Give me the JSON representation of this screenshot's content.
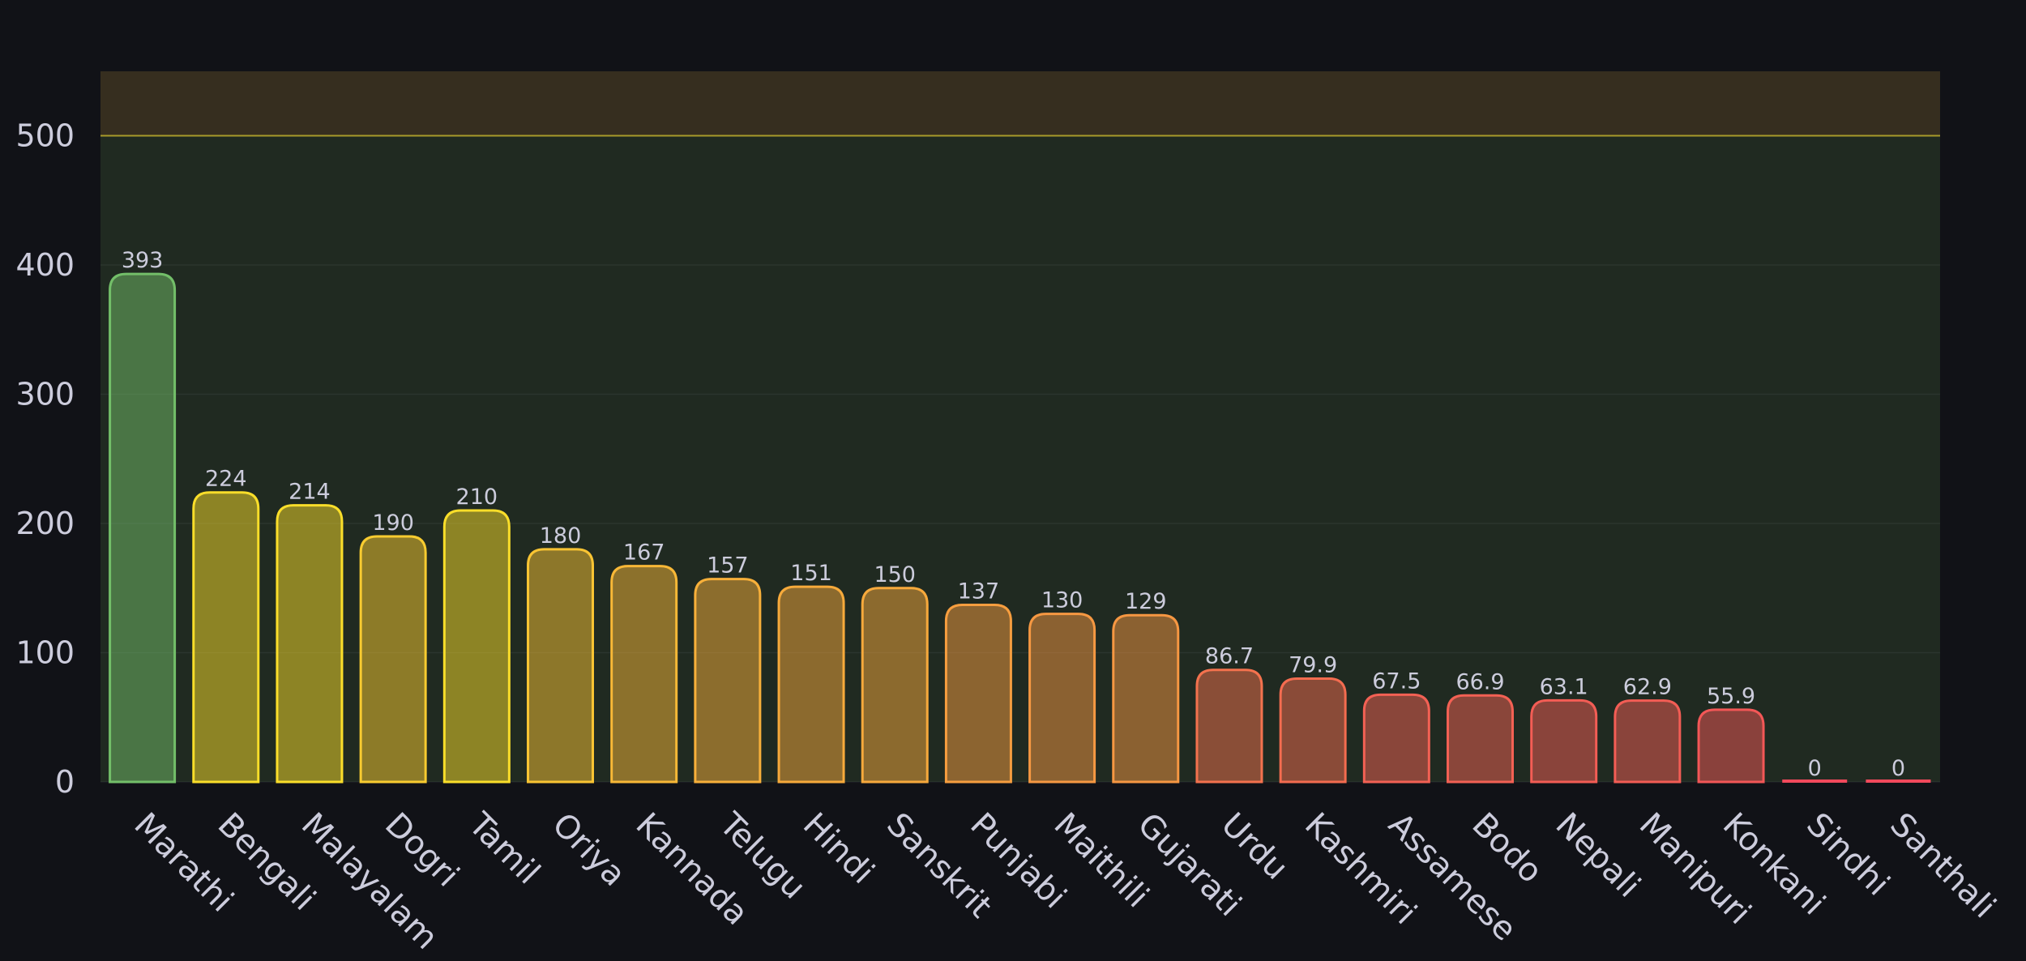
{
  "chart_data": {
    "type": "bar",
    "categories": [
      "Marathi",
      "Bengali",
      "Malayalam",
      "Dogri",
      "Tamil",
      "Oriya",
      "Kannada",
      "Telugu",
      "Hindi",
      "Sanskrit",
      "Punjabi",
      "Maithili",
      "Gujarati",
      "Urdu",
      "Kashmiri",
      "Assamese",
      "Bodo",
      "Nepali",
      "Manipuri",
      "Konkani",
      "Sindhi",
      "Santhali"
    ],
    "values": [
      393,
      224,
      214,
      190,
      210,
      180,
      167,
      157,
      151,
      150,
      137,
      130,
      129,
      86.7,
      79.9,
      67.5,
      66.9,
      63.1,
      62.9,
      55.9,
      0,
      0
    ],
    "value_labels": [
      "393",
      "224",
      "214",
      "190",
      "210",
      "180",
      "167",
      "157",
      "151",
      "150",
      "137",
      "130",
      "129",
      "86.7",
      "79.9",
      "67.5",
      "66.9",
      "63.1",
      "62.9",
      "55.9",
      "0",
      "0"
    ],
    "ylim": [
      0,
      550
    ],
    "yticks": [
      "0",
      "100",
      "200",
      "300",
      "400",
      "500"
    ],
    "ytick_values": [
      0,
      100,
      200,
      300,
      400,
      500
    ],
    "threshold": 500,
    "grid": true,
    "title": "",
    "xlabel": "",
    "ylabel": "",
    "colors": {
      "background": "#111217",
      "region_below_threshold": "#202a21",
      "region_above_threshold": "#362e1f",
      "threshold_line": "#a89a2a",
      "gradient_high": "#73bf69",
      "gradient_mid": "#fade2a",
      "gradient_low": "#f2495c",
      "text": "#ccccdc"
    }
  }
}
